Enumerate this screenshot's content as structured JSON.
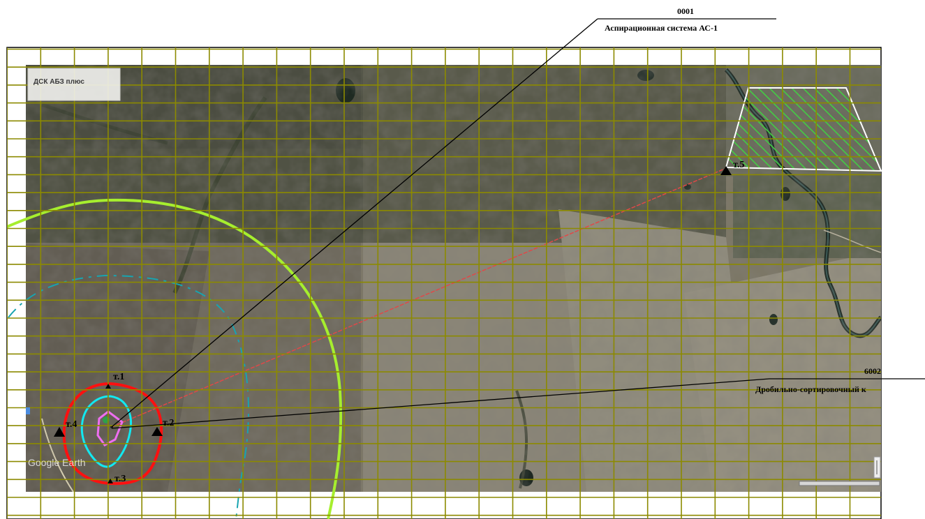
{
  "map": {
    "layer_badge": "ДСК АБЗ плюс",
    "watermark": "Google Earth"
  },
  "sources": [
    {
      "id": "0001",
      "name": "Аспирационная система АС-1"
    },
    {
      "id": "6002",
      "name": "Дробильно-сортировочный к"
    }
  ],
  "control_points": [
    {
      "id": "p1",
      "label": "т.1"
    },
    {
      "id": "p2",
      "label": "т.2"
    },
    {
      "id": "p3",
      "label": "т.3"
    },
    {
      "id": "p4",
      "label": "т.4"
    },
    {
      "id": "p5",
      "label": "т.5"
    }
  ],
  "colors": {
    "grid": "#8c8a00",
    "isoline_outer": "#a6ee2e",
    "isoline_red": "#ff1010",
    "isoline_cyan": "#12e8f0",
    "isoline_magenta": "#ee6ef0",
    "sanitary_zone": "#18a4b0",
    "connection_line": "#e04848",
    "settlement_outline": "#ffffff",
    "settlement_hatch": "#44cc44"
  }
}
